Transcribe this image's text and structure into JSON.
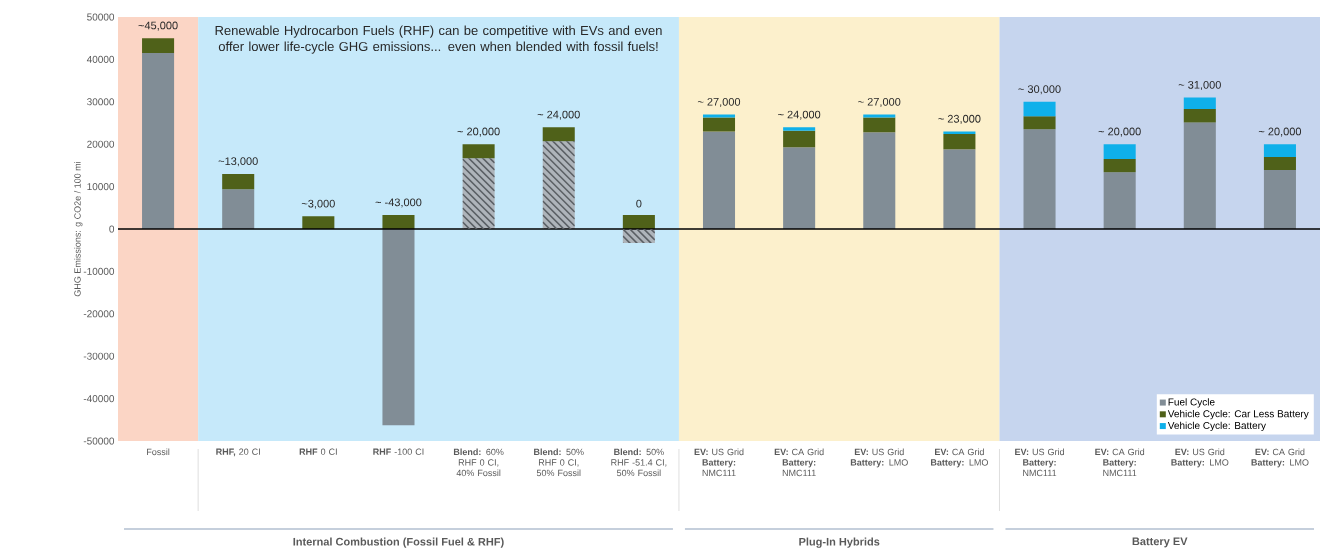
{
  "chart_data": {
    "type": "bar",
    "stacked": true,
    "ylabel": "GHG Emissions: g CO2e / 100 mi",
    "categories": [
      "Fossil",
      "**RHF,** 20 CI",
      "**RHF** 0 CI",
      "**RHF** -100 CI",
      "**Blend:** 60% RHF 0 CI, 40% Fossil",
      "**Blend:** 50% RHF 0 CI, 50% Fossil",
      "**Blend:** 50% RHF -51.4 CI, 50% Fossil",
      "**EV:** US Grid **Battery:** NMC111",
      "**EV:** CA Grid **Battery:** NMC111",
      "**EV:** US Grid **Battery:** LMO",
      "**EV:** CA Grid **Battery:** LMO",
      "**EV:** US Grid **Battery:** NMC111",
      "**EV:** CA Grid **Battery:** NMC111",
      "**EV:** US Grid **Battery:** LMO",
      "**EV:** CA Grid **Battery:** LMO"
    ],
    "series": [
      {
        "name": "Fuel Cycle",
        "color": "#818d96",
        "values": [
          41500,
          9400,
          null,
          -46300,
          null,
          null,
          null,
          23000,
          19300,
          22800,
          18800,
          23500,
          13400,
          25100,
          13900
        ]
      },
      {
        "color": "#aeb4ba",
        "values": [
          null,
          null,
          null,
          null,
          16700,
          20700,
          -3300,
          null,
          null,
          null,
          null,
          null,
          null,
          null,
          null
        ]
      },
      {
        "name": "Vehicle Cycle: Car Less Battery",
        "color": "#4f6119",
        "values": [
          3500,
          3600,
          3000,
          3300,
          3300,
          3300,
          3300,
          3300,
          3900,
          3500,
          3600,
          3100,
          3100,
          3200,
          3100
        ]
      },
      {
        "name": "Vehicle Cycle: Battery",
        "color": "#0fb0ea",
        "values": [
          null,
          null,
          null,
          null,
          null,
          null,
          null,
          700,
          800,
          700,
          600,
          3400,
          3500,
          2700,
          3000
        ]
      }
    ],
    "totals": [
      "~45,000",
      "~13,000",
      "~3,000",
      "~ -43,000",
      "~ 20,000",
      "~ 24,000",
      "0",
      "~ 27,000",
      "~ 24,000",
      "~ 27,000",
      "~ 23,000",
      "~ 30,000",
      "~ 20,000",
      "~ 31,000",
      "~ 20,000"
    ],
    "ylim": [
      -50000,
      50000
    ],
    "yticks": [
      -50000,
      -40000,
      -30000,
      -20000,
      -10000,
      0,
      10000,
      20000,
      30000,
      40000,
      50000
    ],
    "ref_lines": [
      {
        "axis": "y",
        "value": 0,
        "color": "#000000"
      }
    ],
    "annotations": [
      "Renewable Hydrocarbon Fuels (RHF) can be competitive with EVs and even offer lower life-cycle GHG emissions... even when blended with fossil fuels!",
      "Internal Combustion (Fossil Fuel & RHF)",
      "Plug-In Hybrids",
      "Battery EV"
    ],
    "legend": "bottom right",
    "grid": false
  }
}
